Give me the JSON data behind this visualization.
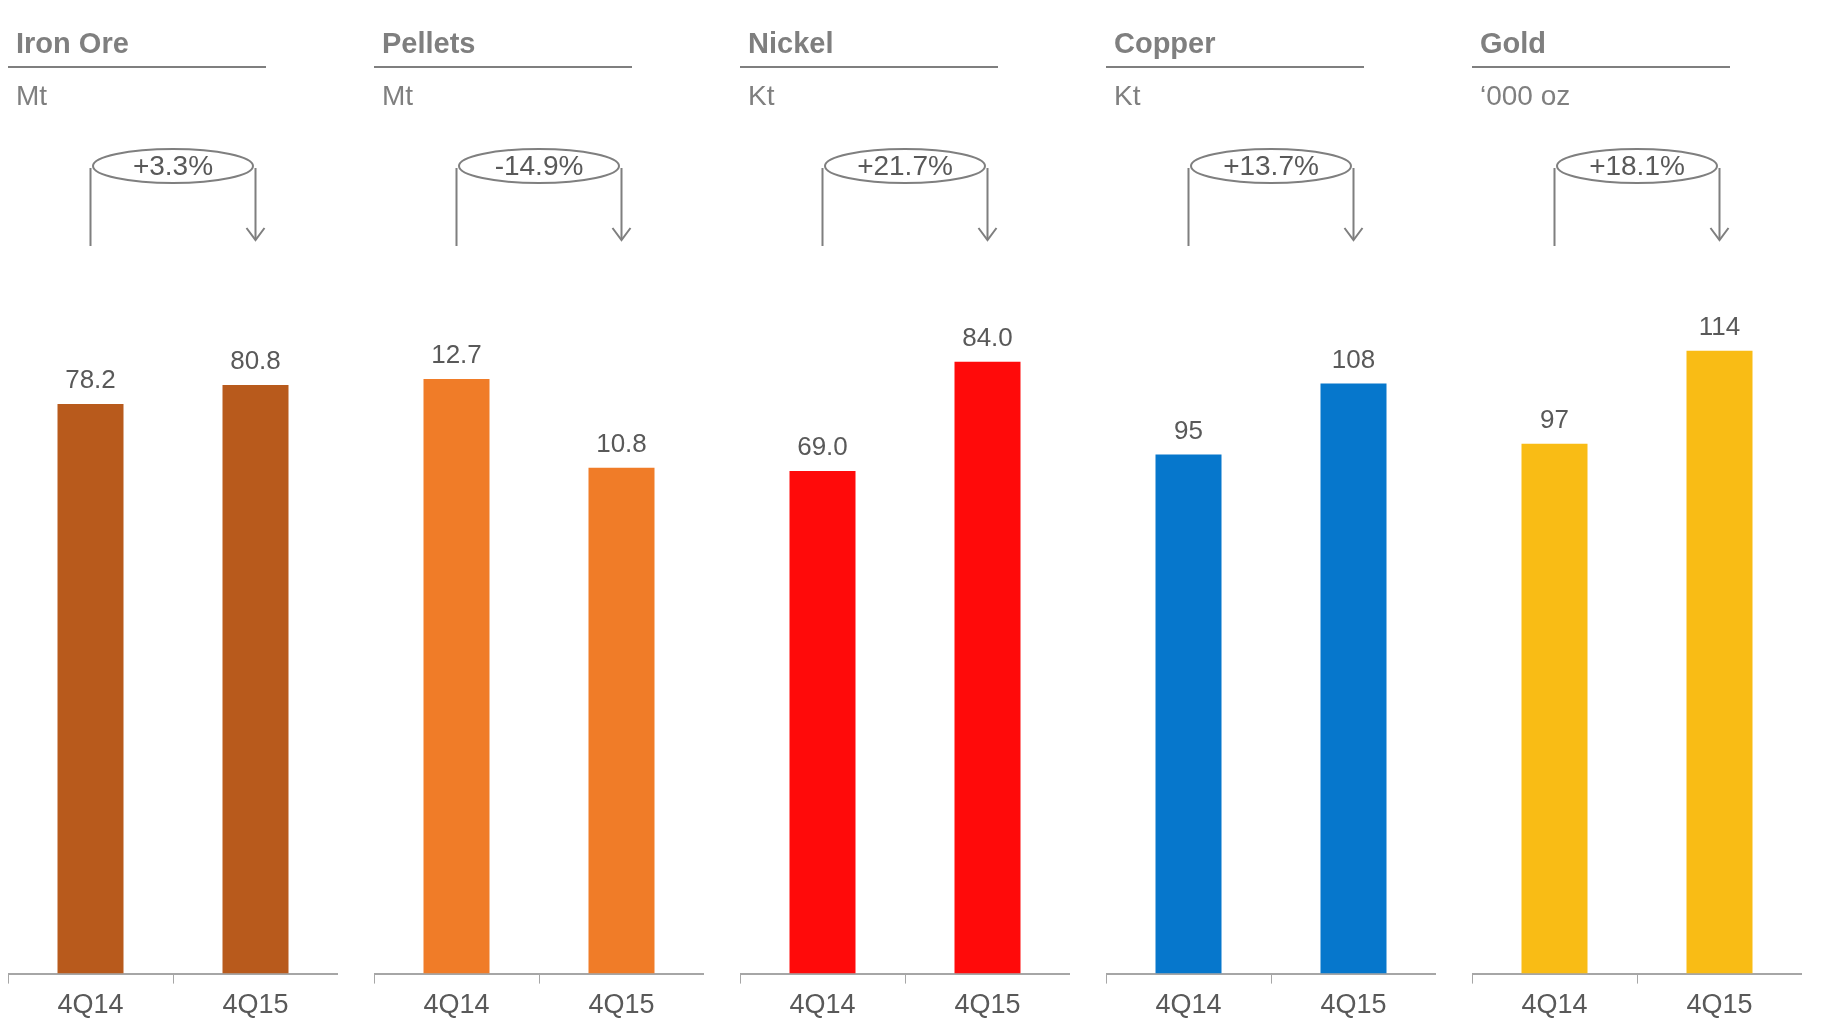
{
  "chart_data": [
    {
      "type": "bar",
      "title": "Iron Ore",
      "subtitle": "Mt",
      "categories": [
        "4Q14",
        "4Q15"
      ],
      "values": [
        78.2,
        80.8
      ],
      "value_labels": [
        "78.2",
        "80.8"
      ],
      "color": "#b85a1c",
      "annotations": [
        "+3.3%"
      ]
    },
    {
      "type": "bar",
      "title": "Pellets",
      "subtitle": "Mt",
      "categories": [
        "4Q14",
        "4Q15"
      ],
      "values": [
        12.7,
        10.8
      ],
      "value_labels": [
        "12.7",
        "10.8"
      ],
      "color": "#f07c28",
      "annotations": [
        "-14.9%"
      ]
    },
    {
      "type": "bar",
      "title": "Nickel",
      "subtitle": "Kt",
      "categories": [
        "4Q14",
        "4Q15"
      ],
      "values": [
        69.0,
        84.0
      ],
      "value_labels": [
        "69.0",
        "84.0"
      ],
      "color": "#ff0a0a",
      "annotations": [
        "+21.7%"
      ]
    },
    {
      "type": "bar",
      "title": "Copper",
      "subtitle": "Kt",
      "categories": [
        "4Q14",
        "4Q15"
      ],
      "values": [
        95,
        108
      ],
      "value_labels": [
        "95",
        "108"
      ],
      "color": "#0677cc",
      "annotations": [
        "+13.7%"
      ]
    },
    {
      "type": "bar",
      "title": "Gold",
      "subtitle": "‘000 oz",
      "categories": [
        "4Q14",
        "4Q15"
      ],
      "values": [
        97,
        114
      ],
      "value_labels": [
        "97",
        "114"
      ],
      "color": "#f9bc15",
      "annotations": [
        "+18.1%"
      ]
    }
  ]
}
